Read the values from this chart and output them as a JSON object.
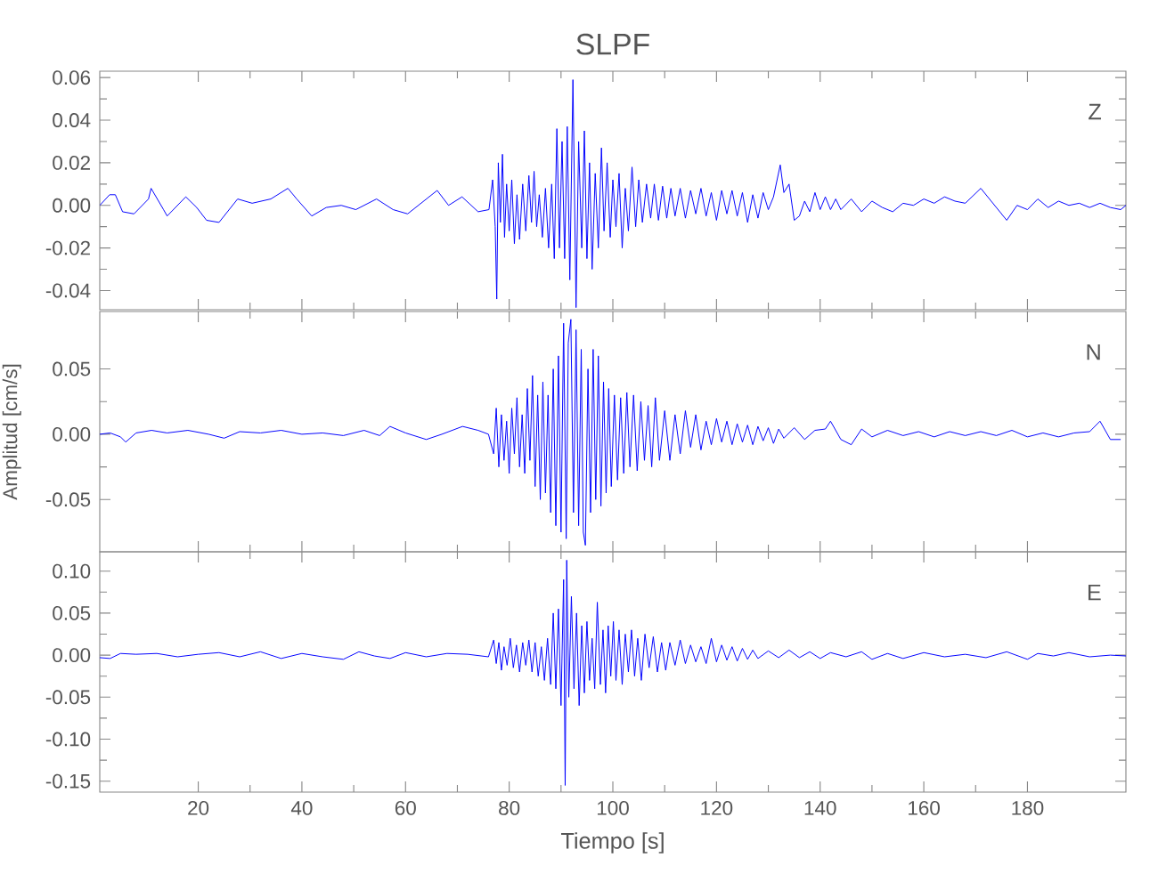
{
  "chart_data": [
    {
      "type": "line",
      "title": "SLPF",
      "annotations": [
        "Z"
      ],
      "color": "#0000ff",
      "tick_labels": "y",
      "xlim": [
        1,
        199
      ],
      "xticks": [
        20,
        40,
        60,
        80,
        100,
        120,
        140,
        160,
        180
      ],
      "ylim": [
        -0.049,
        0.063
      ],
      "yticks": [
        {
          "value": -0.04,
          "label": "-0.04"
        },
        {
          "value": -0.02,
          "label": "-0.02"
        },
        {
          "value": 0,
          "label": "0.00"
        },
        {
          "value": 0.02,
          "label": "0.02"
        },
        {
          "value": 0.04,
          "label": "0.04"
        },
        {
          "value": 0.06,
          "label": "0.06"
        }
      ],
      "x": [
        1,
        2.9,
        4,
        5.4,
        7.6,
        10.4,
        10.9,
        13.3,
        14,
        17.6,
        19.7,
        21.6,
        24,
        27.6,
        30.4,
        34,
        37.3,
        39,
        41.9,
        44.7,
        47.6,
        50.4,
        54.4,
        57.6,
        60.4,
        66.1,
        68.3,
        70.9,
        74,
        76.1,
        76.8,
        77.3,
        77.6,
        77.9,
        78.3,
        78.7,
        79.1,
        79.5,
        80,
        80.5,
        81,
        81.5,
        82,
        82.6,
        83.2,
        83.8,
        84.3,
        84.8,
        85.3,
        85.8,
        86.4,
        87,
        87.6,
        88.2,
        88.7,
        89.2,
        89.7,
        90.2,
        90.7,
        91.2,
        91.7,
        92.3,
        92.9,
        93.4,
        94,
        94.5,
        95,
        95.5,
        96,
        96.6,
        97.2,
        97.8,
        98.3,
        98.9,
        99.5,
        100,
        100.6,
        101.2,
        101.8,
        102.4,
        103,
        103.7,
        104.4,
        105,
        105.7,
        106.5,
        107.3,
        108,
        108.8,
        109.6,
        110.4,
        111.2,
        112,
        113,
        114,
        115,
        116,
        117,
        118,
        119,
        120,
        121,
        122,
        123,
        124,
        125,
        126,
        127,
        128,
        129,
        130,
        131,
        132.3,
        133,
        134,
        135,
        136,
        137,
        138,
        139,
        140,
        141,
        142,
        143,
        144,
        146,
        148,
        150,
        152,
        154,
        156,
        158,
        160,
        162,
        164,
        166,
        168,
        171,
        173,
        176,
        178,
        180,
        182,
        184,
        186,
        188,
        190,
        192,
        194,
        196,
        198,
        199
      ],
      "values": [
        0,
        0.005,
        0.005,
        -0.003,
        -0.004,
        0.003,
        0.008,
        -0.002,
        -0.005,
        0.004,
        -0.001,
        -0.007,
        -0.008,
        0.003,
        0.001,
        0.003,
        0.008,
        0.003,
        -0.005,
        -0.001,
        0,
        -0.002,
        0.003,
        -0.002,
        -0.004,
        0.007,
        0,
        0.004,
        -0.003,
        -0.002,
        0.012,
        -0.01,
        -0.044,
        0.02,
        -0.008,
        0.024,
        -0.015,
        0.01,
        -0.012,
        0.012,
        -0.018,
        0.005,
        -0.016,
        0.01,
        -0.012,
        0.014,
        -0.008,
        0.016,
        -0.01,
        0.005,
        -0.015,
        0.008,
        -0.02,
        0.01,
        -0.025,
        0.036,
        -0.02,
        0.03,
        -0.025,
        0.037,
        -0.035,
        0.059,
        -0.048,
        0.03,
        -0.02,
        0.035,
        -0.025,
        0.02,
        -0.03,
        0.015,
        -0.02,
        0.027,
        -0.012,
        0.02,
        -0.015,
        0.012,
        -0.01,
        0.015,
        -0.02,
        0.008,
        -0.012,
        0.018,
        -0.01,
        0.012,
        -0.008,
        0.01,
        -0.006,
        0.01,
        -0.007,
        0.009,
        -0.006,
        0.008,
        -0.005,
        0.008,
        -0.006,
        0.007,
        -0.004,
        0.008,
        -0.005,
        0.006,
        -0.007,
        0.007,
        -0.004,
        0.007,
        -0.005,
        0.006,
        -0.008,
        0.005,
        -0.006,
        0.006,
        -0.002,
        0.004,
        0.019,
        0.006,
        0.01,
        -0.007,
        -0.005,
        0.002,
        -0.003,
        0.006,
        -0.002,
        0.004,
        -0.002,
        0.003,
        -0.002,
        0.003,
        -0.003,
        0.002,
        -0.001,
        -0.003,
        0.001,
        0,
        0.003,
        0.001,
        0.004,
        0.002,
        0.001,
        0.008,
        0.002,
        -0.007,
        0,
        -0.002,
        0.003,
        -0.001,
        0.002,
        0,
        0.001,
        -0.001,
        0.001,
        -0.001,
        -0.002,
        0
      ]
    },
    {
      "type": "line",
      "ylabel": "Amplitud [cm/s]",
      "annotations": [
        "N"
      ],
      "color": "#0000ff",
      "tick_labels": "y",
      "xlim": [
        1,
        199
      ],
      "xticks": [
        20,
        40,
        60,
        80,
        100,
        120,
        140,
        160,
        180
      ],
      "ylim": [
        -0.09,
        0.094
      ],
      "yticks": [
        {
          "value": -0.05,
          "label": "-0.05"
        },
        {
          "value": 0,
          "label": "0.00"
        },
        {
          "value": 0.05,
          "label": "0.05"
        }
      ],
      "x": [
        1,
        3,
        5,
        6,
        8,
        11,
        14,
        18,
        22,
        25,
        28,
        32,
        36,
        40,
        44,
        48,
        52,
        55,
        57,
        60,
        64,
        67,
        71,
        74,
        76,
        77,
        77.5,
        78,
        78.5,
        79,
        79.5,
        80,
        80.5,
        81,
        81.5,
        82,
        82.5,
        83,
        83.5,
        84,
        84.5,
        85,
        85.5,
        86,
        86.5,
        87,
        87.5,
        88,
        88.5,
        89,
        89.5,
        90,
        90.5,
        91,
        91.4,
        91.9,
        92.4,
        92.9,
        93.4,
        93.9,
        94.3,
        94.7,
        95.2,
        95.7,
        96.2,
        96.7,
        97.2,
        97.7,
        98.2,
        98.7,
        99.2,
        99.7,
        100.3,
        100.9,
        101.5,
        102.1,
        102.7,
        103.3,
        104,
        104.7,
        105.4,
        106.1,
        106.8,
        107.5,
        108.2,
        109,
        110,
        111,
        112,
        113,
        114,
        115,
        116,
        117,
        118,
        119,
        120,
        121,
        122,
        123,
        124,
        125,
        126,
        127,
        128,
        129,
        130,
        131,
        132,
        133,
        135,
        137,
        139,
        141,
        142,
        144,
        146,
        148,
        150,
        153,
        156,
        159,
        162,
        165,
        168,
        171,
        174,
        177,
        180,
        183,
        186,
        189,
        192,
        194,
        196,
        198
      ],
      "values": [
        0,
        0.001,
        -0.002,
        -0.006,
        0.001,
        0.003,
        0.001,
        0.003,
        0,
        -0.003,
        0.002,
        0.001,
        0.003,
        0,
        0.001,
        -0.001,
        0.003,
        -0.001,
        0.006,
        0.001,
        -0.004,
        0,
        0.006,
        0.003,
        0,
        -0.015,
        0.02,
        -0.025,
        0.015,
        -0.02,
        0.01,
        -0.03,
        0.02,
        -0.015,
        0.028,
        -0.025,
        0.015,
        -0.03,
        0.035,
        -0.02,
        0.045,
        -0.04,
        0.03,
        -0.05,
        0.04,
        -0.045,
        0.03,
        -0.06,
        0.05,
        -0.07,
        0.06,
        -0.075,
        0.085,
        -0.08,
        0.07,
        0.088,
        -0.06,
        0.08,
        -0.07,
        0.065,
        -0.075,
        -0.085,
        0.05,
        -0.06,
        0.065,
        -0.05,
        0.06,
        -0.055,
        0.04,
        -0.045,
        0.035,
        -0.04,
        0.03,
        -0.035,
        0.028,
        -0.03,
        0.032,
        -0.025,
        0.03,
        -0.028,
        0.025,
        -0.02,
        0.022,
        -0.025,
        0.028,
        -0.02,
        0.018,
        -0.02,
        0.015,
        -0.015,
        0.018,
        -0.01,
        0.015,
        -0.012,
        0.01,
        -0.008,
        0.012,
        -0.006,
        0.01,
        -0.008,
        0.008,
        -0.006,
        0.007,
        -0.008,
        0.006,
        -0.005,
        0.005,
        -0.007,
        0.004,
        -0.003,
        0.005,
        -0.004,
        0.003,
        0.004,
        0.01,
        -0.004,
        -0.008,
        0.004,
        -0.002,
        0.003,
        -0.001,
        0.002,
        -0.002,
        0.002,
        -0.001,
        0.002,
        -0.001,
        0.003,
        -0.002,
        0.001,
        -0.002,
        0.001,
        0.002,
        0.01,
        -0.004,
        -0.004
      ]
    },
    {
      "type": "line",
      "xlabel": "Tiempo [s]",
      "annotations": [
        "E"
      ],
      "color": "#0000ff",
      "xlim": [
        1,
        199
      ],
      "xticks": [
        20,
        40,
        60,
        80,
        100,
        120,
        140,
        160,
        180
      ],
      "ylim": [
        -0.163,
        0.123
      ],
      "yticks": [
        {
          "value": -0.15,
          "label": "-0.15"
        },
        {
          "value": -0.1,
          "label": "-0.10"
        },
        {
          "value": -0.05,
          "label": "-0.05"
        },
        {
          "value": 0,
          "label": "0.00"
        },
        {
          "value": 0.05,
          "label": "0.05"
        },
        {
          "value": 0.1,
          "label": "0.10"
        }
      ],
      "x": [
        1,
        3,
        5,
        8,
        12,
        16,
        20,
        24,
        28,
        32,
        36,
        40,
        44,
        48,
        51,
        54,
        57,
        60,
        64,
        68,
        72,
        76,
        77,
        77.5,
        78,
        78.5,
        79,
        79.6,
        80.2,
        80.8,
        81.4,
        82,
        82.6,
        83.2,
        83.8,
        84.4,
        85,
        85.6,
        86.2,
        86.8,
        87.4,
        88,
        88.5,
        89,
        89.5,
        90,
        90.5,
        90.8,
        91.1,
        91.5,
        92,
        92.5,
        93,
        93.5,
        94,
        94.5,
        95,
        95.5,
        96,
        96.5,
        97,
        97.6,
        98.1,
        98.6,
        99.1,
        99.6,
        100.1,
        100.6,
        101.2,
        101.8,
        102.4,
        103,
        103.6,
        104.2,
        104.8,
        105.5,
        106.2,
        107,
        107.8,
        108.6,
        109.4,
        110.2,
        111,
        112,
        113,
        114,
        115,
        116,
        117,
        118,
        119,
        120,
        121,
        122,
        123,
        124,
        125,
        126,
        127,
        128,
        130,
        132,
        134,
        136,
        138,
        140,
        142,
        145,
        148,
        150,
        153,
        156,
        160,
        164,
        168,
        172,
        176,
        180,
        182,
        185,
        188,
        192,
        196,
        199
      ],
      "values": [
        -0.003,
        -0.004,
        0.002,
        0.001,
        0.002,
        -0.002,
        0.001,
        0.003,
        -0.002,
        0.004,
        -0.004,
        0.002,
        -0.002,
        -0.005,
        0.004,
        -0.001,
        -0.004,
        0.003,
        -0.002,
        0.002,
        0.001,
        -0.002,
        0.018,
        -0.01,
        0.015,
        -0.018,
        0.01,
        -0.012,
        0.02,
        -0.015,
        0.012,
        -0.02,
        0.015,
        -0.012,
        0.018,
        -0.02,
        0.015,
        -0.025,
        0.01,
        -0.03,
        0.02,
        -0.035,
        0.05,
        -0.04,
        0.055,
        -0.06,
        0.09,
        -0.155,
        0.113,
        -0.05,
        0.07,
        -0.04,
        0.05,
        -0.06,
        0.035,
        -0.045,
        0.04,
        -0.03,
        0.02,
        -0.04,
        0.063,
        -0.035,
        0.03,
        -0.045,
        0.035,
        -0.025,
        0.04,
        -0.03,
        0.03,
        -0.035,
        0.025,
        -0.02,
        0.03,
        -0.025,
        0.02,
        -0.03,
        0.025,
        -0.015,
        0.022,
        -0.02,
        0.015,
        -0.018,
        0.015,
        -0.012,
        0.018,
        -0.01,
        0.012,
        -0.008,
        0.01,
        -0.01,
        0.02,
        -0.008,
        0.012,
        -0.006,
        0.01,
        -0.007,
        0.008,
        -0.005,
        0.006,
        -0.004,
        0.005,
        -0.003,
        0.006,
        -0.003,
        0.004,
        -0.004,
        0.003,
        -0.002,
        0.004,
        -0.005,
        0.002,
        -0.004,
        0.003,
        -0.002,
        0.001,
        -0.003,
        0.004,
        -0.005,
        0.002,
        -0.001,
        0.003,
        -0.002,
        0,
        -0.001
      ]
    }
  ]
}
